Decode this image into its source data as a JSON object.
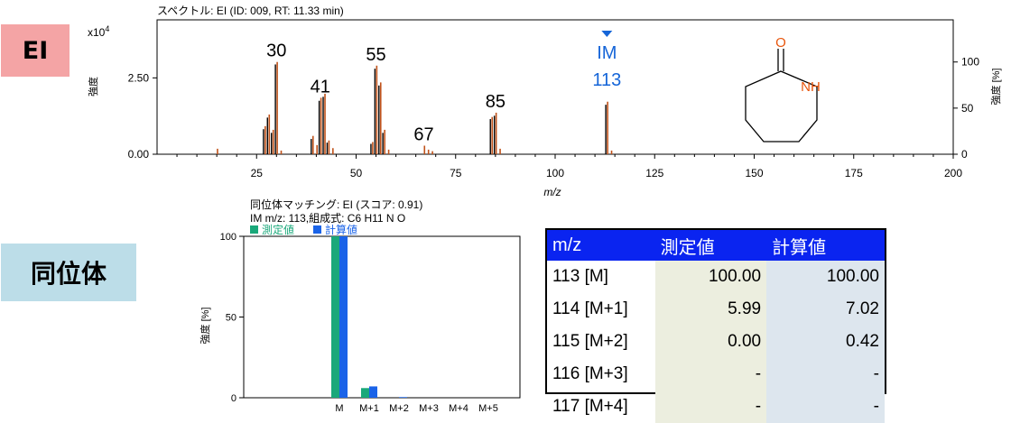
{
  "labels": {
    "ei": "EI",
    "isotope": "同位体"
  },
  "chart_data": [
    {
      "type": "bar",
      "title": "スペクトル: EI (ID: 009, RT: 11.33 min)",
      "xlabel": "m/z",
      "ylabel": "強度",
      "ylabel_right": "強度 [%]",
      "y_multiplier": "x10",
      "y_multiplier_exp": "4",
      "xlim": [
        0,
        200
      ],
      "ylim": [
        0,
        4.4
      ],
      "y_ticks": [
        "0.00",
        "2.50"
      ],
      "y_right_ticks": [
        "0",
        "50",
        "100"
      ],
      "x_ticks": [
        "25",
        "50",
        "75",
        "100",
        "125",
        "150",
        "175",
        "200"
      ],
      "peaks": [
        {
          "mz": 15,
          "cal": 0.18
        },
        {
          "mz": 27,
          "cal": 0.92,
          "obs": 0.82
        },
        {
          "mz": 28,
          "cal": 1.3,
          "obs": 1.2
        },
        {
          "mz": 29,
          "cal": 0.8,
          "obs": 0.7
        },
        {
          "mz": 30,
          "cal": 3.02,
          "obs": 2.94
        },
        {
          "mz": 31,
          "cal": 0.12
        },
        {
          "mz": 39,
          "cal": 0.6,
          "obs": 0.5
        },
        {
          "mz": 40,
          "cal": 0.3
        },
        {
          "mz": 41,
          "cal": 1.85,
          "obs": 1.75
        },
        {
          "mz": 42,
          "cal": 1.98,
          "obs": 1.88
        },
        {
          "mz": 43,
          "cal": 0.45,
          "obs": 0.38
        },
        {
          "mz": 44,
          "cal": 0.2
        },
        {
          "mz": 54,
          "cal": 0.4,
          "obs": 0.34
        },
        {
          "mz": 55,
          "cal": 2.9,
          "obs": 2.8
        },
        {
          "mz": 56,
          "cal": 2.35,
          "obs": 2.25
        },
        {
          "mz": 57,
          "cal": 0.8,
          "obs": 0.7
        },
        {
          "mz": 58,
          "cal": 0.15
        },
        {
          "mz": 67,
          "cal": 0.28
        },
        {
          "mz": 68,
          "cal": 0.15
        },
        {
          "mz": 69,
          "cal": 0.1
        },
        {
          "mz": 84,
          "cal": 1.22,
          "obs": 1.15
        },
        {
          "mz": 85,
          "cal": 1.36,
          "obs": 1.26
        },
        {
          "mz": 86,
          "cal": 0.18
        },
        {
          "mz": 113,
          "cal": 1.72,
          "obs": 1.62
        },
        {
          "mz": 114,
          "cal": 0.12
        }
      ],
      "annotations": [
        {
          "text": "30",
          "mz": 30,
          "color": "#000000"
        },
        {
          "text": "41",
          "mz": 41,
          "color": "#000000"
        },
        {
          "text": "55",
          "mz": 55,
          "color": "#000000"
        },
        {
          "text": "67",
          "mz": 67,
          "color": "#000000"
        },
        {
          "text": "85",
          "mz": 85,
          "color": "#000000"
        },
        {
          "text": "IM",
          "mz": 113,
          "color": "#1565d8"
        },
        {
          "text": "113",
          "mz": 113,
          "color": "#1565d8"
        }
      ],
      "structure": {
        "o_label": "O",
        "nh_label": "NH",
        "color": "#e8550c"
      },
      "colors": {
        "observed": "#000000",
        "calculated": "#c0521a",
        "im": "#1565d8"
      }
    },
    {
      "type": "bar",
      "title": "同位体マッチング: EI (スコア: 0.91)",
      "subtitle": "IM m/z: 113,組成式: C6 H11 N O",
      "ylabel": "強度 [%]",
      "ylim": [
        0,
        100
      ],
      "y_ticks": [
        "0",
        "50",
        "100"
      ],
      "categories": [
        "M",
        "M+1",
        "M+2",
        "M+3",
        "M+4",
        "M+5"
      ],
      "series": [
        {
          "name": "測定値",
          "values": [
            100,
            5.99,
            0,
            0,
            0,
            0
          ],
          "color": "#1aa87a"
        },
        {
          "name": "計算値",
          "values": [
            100,
            7.02,
            0.42,
            0,
            0,
            0
          ],
          "color": "#1a63e8"
        }
      ]
    }
  ],
  "table": {
    "headers": [
      "m/z",
      "測定値",
      "計算値"
    ],
    "rows": [
      [
        "113 [M]",
        "100.00",
        "100.00"
      ],
      [
        "114 [M+1]",
        "5.99",
        "7.02"
      ],
      [
        "115 [M+2]",
        "0.00",
        "0.42"
      ],
      [
        "116 [M+3]",
        "-",
        "-"
      ],
      [
        "117 [M+4]",
        "-",
        "-"
      ]
    ]
  }
}
